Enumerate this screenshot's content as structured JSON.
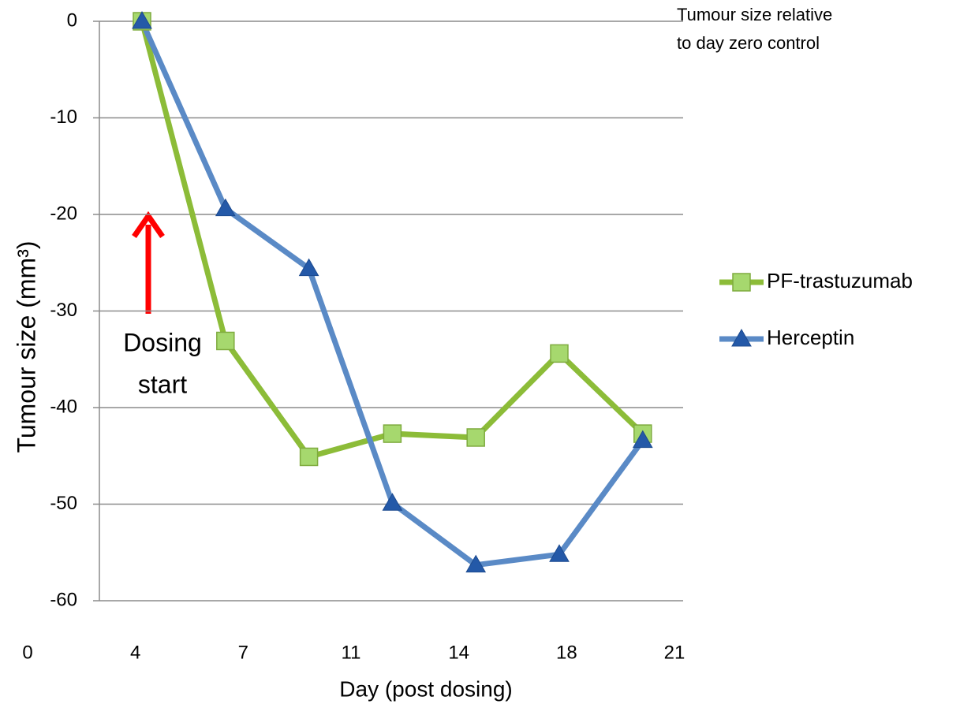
{
  "chart_data": {
    "type": "line",
    "x_label": "Day (post dosing)",
    "y_label": "Tumour size (mm³)",
    "categories": [
      "0",
      "4",
      "7",
      "11",
      "14",
      "18",
      "21"
    ],
    "series": [
      {
        "name": "PF-trastuzumab",
        "color": "#8cbc38",
        "marker": "square",
        "values": [
          0,
          -33.1,
          -45.1,
          -42.7,
          -43.1,
          -34.4,
          -42.7
        ]
      },
      {
        "name": "Herceptin",
        "color": "#5a8ac6",
        "marker": "triangle",
        "values": [
          0,
          -19.4,
          -25.6,
          -49.9,
          -56.3,
          -55.2,
          -43.4
        ]
      }
    ],
    "ylim": [
      -60,
      0
    ],
    "yticks": [
      0,
      -10,
      -20,
      -30,
      -40,
      -50,
      -60
    ],
    "grid": true,
    "legend": "right",
    "annotations": [
      {
        "lines": [
          "Tumour size relative",
          "to day zero control"
        ]
      },
      {
        "lines": [
          "Dosing",
          "start"
        ]
      }
    ]
  }
}
